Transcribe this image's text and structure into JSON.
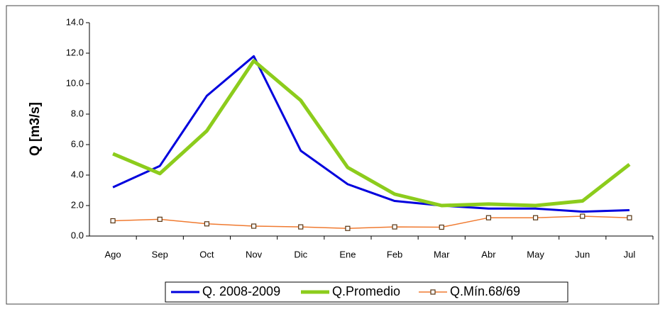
{
  "chart_data": {
    "type": "line",
    "y_label": "Q [m3/s]",
    "categories": [
      "Ago",
      "Sep",
      "Oct",
      "Nov",
      "Dic",
      "Ene",
      "Feb",
      "Mar",
      "Abr",
      "May",
      "Jun",
      "Jul"
    ],
    "series": [
      {
        "name": "Q. 2008-2009",
        "color": "#0000dd",
        "width": 3,
        "marker": false,
        "values": [
          3.2,
          4.6,
          9.2,
          11.8,
          5.6,
          3.4,
          2.3,
          2.0,
          1.8,
          1.8,
          1.6,
          1.7
        ]
      },
      {
        "name": "Q.Promedio",
        "color": "#8ccc1c",
        "width": 5,
        "marker": false,
        "values": [
          5.4,
          4.1,
          6.9,
          11.5,
          8.9,
          4.5,
          2.75,
          2.0,
          2.1,
          2.0,
          2.3,
          4.7
        ]
      },
      {
        "name": "Q.Mín.68/69",
        "color": "#f07a30",
        "width": 1.5,
        "marker": true,
        "values": [
          1.0,
          1.1,
          0.8,
          0.65,
          0.6,
          0.5,
          0.6,
          0.58,
          1.2,
          1.2,
          1.3,
          1.2
        ]
      }
    ],
    "ylim": [
      0,
      14
    ],
    "yticks": [
      {
        "value": 0,
        "label": "0.0"
      },
      {
        "value": 2,
        "label": "2.0"
      },
      {
        "value": 4,
        "label": "4.0"
      },
      {
        "value": 6,
        "label": "6.0"
      },
      {
        "value": 8,
        "label": "8.0"
      },
      {
        "value": 10,
        "label": "10.0"
      },
      {
        "value": 12,
        "label": "12.0"
      },
      {
        "value": 14,
        "label": "14.0"
      }
    ],
    "grid": false,
    "legend": "bottom"
  }
}
